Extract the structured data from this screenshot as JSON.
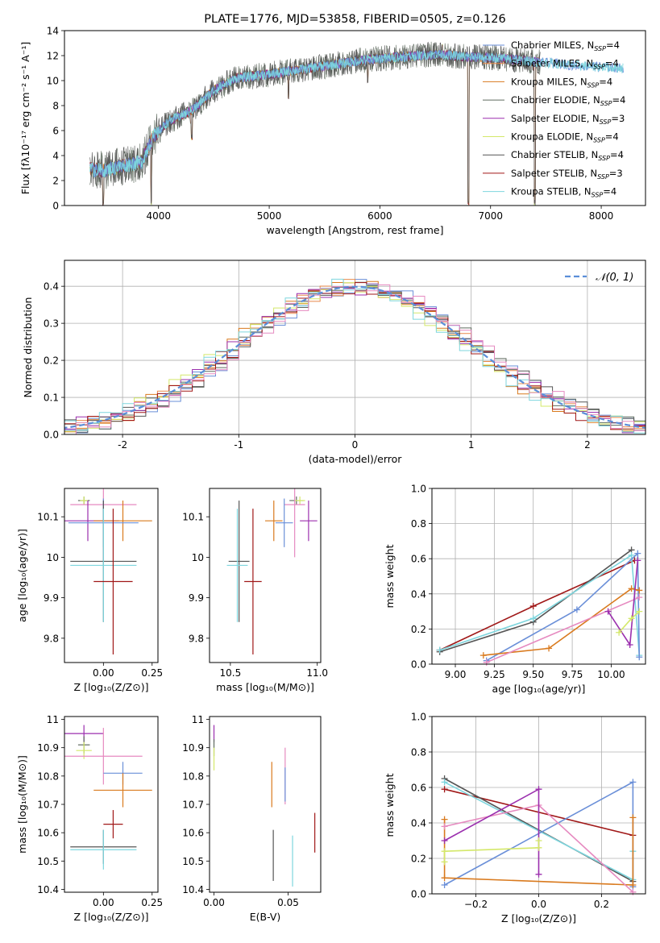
{
  "colors": {
    "chabrier_miles": "#6a8fd8",
    "salpeter_miles": "#e8894a",
    "kroupa_miles": "#d97a1e",
    "chabrier_elodie": "#5f6b5f",
    "salpeter_elodie": "#9b2fae",
    "kroupa_elodie": "#d4e86a",
    "chabrier_stelib": "#555555",
    "salpeter_stelib": "#a01818",
    "kroupa_stelib": "#7ed6de",
    "gauss": "#5b8ed8",
    "pink": "#e68ac0",
    "grid": "#b0b0b0"
  },
  "chart_data": [
    {
      "id": "spectrum",
      "type": "line",
      "title": "PLATE=1776, MJD=53858, FIBERID=0505, z=0.126",
      "xlabel": "wavelength [Angstrom, rest frame]",
      "ylabel": "Flux [fλ10⁻¹⁷ erg cm⁻² s⁻¹ A⁻¹]",
      "xlim": [
        3150,
        8400
      ],
      "ylim": [
        0,
        14
      ],
      "xticks": [
        4000,
        5000,
        6000,
        7000,
        8000
      ],
      "yticks": [
        0,
        2,
        4,
        6,
        8,
        10,
        12,
        14
      ],
      "grid": false,
      "legend_position": "right",
      "legend": [
        {
          "label": "Chabrier MILES, N",
          "sub": "SSP",
          "tail": "=4",
          "color": "chabrier_miles"
        },
        {
          "label": "Salpeter MILES, N",
          "sub": "SSP",
          "tail": "=4",
          "color": "salpeter_miles"
        },
        {
          "label": "Kroupa MILES, N",
          "sub": "SSP",
          "tail": "=4",
          "color": "kroupa_miles"
        },
        {
          "label": "Chabrier ELODIE, N",
          "sub": "SSP",
          "tail": "=4",
          "color": "chabrier_elodie"
        },
        {
          "label": "Salpeter ELODIE, N",
          "sub": "SSP",
          "tail": "=3",
          "color": "salpeter_elodie"
        },
        {
          "label": "Kroupa ELODIE, N",
          "sub": "SSP",
          "tail": "=4",
          "color": "kroupa_elodie"
        },
        {
          "label": "Chabrier STELIB, N",
          "sub": "SSP",
          "tail": "=4",
          "color": "chabrier_stelib"
        },
        {
          "label": "Salpeter STELIB, N",
          "sub": "SSP",
          "tail": "=3",
          "color": "salpeter_stelib"
        },
        {
          "label": "Kroupa STELIB, N",
          "sub": "SSP",
          "tail": "=4",
          "color": "kroupa_stelib"
        }
      ],
      "continuum": [
        [
          3380,
          2.9
        ],
        [
          3500,
          2.8
        ],
        [
          3700,
          3.2
        ],
        [
          3850,
          3.5
        ],
        [
          3950,
          5.5
        ],
        [
          4100,
          6.8
        ],
        [
          4300,
          7.6
        ],
        [
          4500,
          9.2
        ],
        [
          4700,
          10.2
        ],
        [
          5000,
          10.5
        ],
        [
          5300,
          10.9
        ],
        [
          5600,
          11.3
        ],
        [
          5900,
          11.7
        ],
        [
          6200,
          11.9
        ],
        [
          6500,
          12.1
        ],
        [
          6800,
          11.9
        ],
        [
          7100,
          11.8
        ],
        [
          7400,
          11.5
        ],
        [
          7800,
          11.2
        ],
        [
          8200,
          11.0
        ]
      ],
      "dips": [
        [
          3500,
          0
        ],
        [
          3933,
          0
        ],
        [
          4300,
          5.2
        ],
        [
          5175,
          8.5
        ],
        [
          5890,
          9.8
        ],
        [
          6800,
          0
        ],
        [
          7400,
          0
        ],
        [
          6563,
          12.5
        ]
      ]
    },
    {
      "id": "residuals",
      "type": "histogram",
      "xlabel": "(data-model)/error",
      "ylabel": "Normed distribution",
      "xlim": [
        -2.5,
        2.5
      ],
      "ylim": [
        0,
        0.47
      ],
      "xticks": [
        -2,
        -1,
        0,
        1,
        2
      ],
      "yticks": [
        0.0,
        0.1,
        0.2,
        0.3,
        0.4
      ],
      "grid": true,
      "legend_position": "top-right",
      "legend": [
        {
          "label": "𝒩(0, 1)",
          "color": "gauss",
          "dash": true
        }
      ],
      "bin_width": 0.1
    },
    {
      "id": "age_vs_Z",
      "type": "errorbar",
      "xlabel": "Z [log₁₀(Z/Z⊙)]",
      "ylabel": "age  [log₁₀(age/yr)]",
      "xlim": [
        -0.2,
        0.28
      ],
      "ylim": [
        9.74,
        10.17
      ],
      "xticks": [
        0.0,
        0.25
      ],
      "xticklabels": [
        "0.00",
        "0.25"
      ],
      "yticks": [
        9.8,
        9.9,
        10.0,
        10.1
      ],
      "grid": false,
      "points": [
        {
          "x": -0.1,
          "y": 10.14,
          "xerr": 0.03,
          "yerr": 0.01,
          "color": "chabrier_elodie"
        },
        {
          "x": -0.1,
          "y": 10.14,
          "xerr": 0.02,
          "yerr": 0.01,
          "color": "kroupa_elodie"
        },
        {
          "x": 0.0,
          "y": 10.13,
          "xerr": 0.17,
          "yerr": 0.14,
          "color": "pink"
        },
        {
          "x": -0.08,
          "y": 10.09,
          "xerr": 0.16,
          "yerr": 0.05,
          "color": "salpeter_elodie"
        },
        {
          "x": 0.1,
          "y": 10.09,
          "xerr": 0.15,
          "yerr": 0.05,
          "color": "kroupa_miles"
        },
        {
          "x": 0.0,
          "y": 10.085,
          "xerr": 0.18,
          "yerr": 0.06,
          "color": "chabrier_miles"
        },
        {
          "x": 0.0,
          "y": 9.99,
          "xerr": 0.17,
          "yerr": 0.15,
          "color": "chabrier_stelib"
        },
        {
          "x": 0.0,
          "y": 9.98,
          "xerr": 0.17,
          "yerr": 0.14,
          "color": "kroupa_stelib"
        },
        {
          "x": 0.05,
          "y": 9.94,
          "xerr": 0.1,
          "yerr": 0.18,
          "color": "salpeter_stelib"
        }
      ]
    },
    {
      "id": "age_vs_mass",
      "type": "errorbar",
      "xlabel": "mass [log₁₀(M/M⊙)]",
      "xlim": [
        10.38,
        11.02
      ],
      "ylim": [
        9.74,
        10.17
      ],
      "xticks": [
        10.5,
        11.0
      ],
      "xticklabels": [
        "10.5",
        "11.0"
      ],
      "yticks": [
        9.8,
        9.9,
        10.0,
        10.1
      ],
      "grid": false,
      "points": [
        {
          "x": 10.88,
          "y": 10.14,
          "xerr": 0.04,
          "yerr": 0.01,
          "color": "chabrier_elodie"
        },
        {
          "x": 10.9,
          "y": 10.14,
          "xerr": 0.03,
          "yerr": 0.01,
          "color": "kroupa_elodie"
        },
        {
          "x": 10.87,
          "y": 10.13,
          "xerr": 0.06,
          "yerr": 0.13,
          "color": "pink"
        },
        {
          "x": 10.95,
          "y": 10.09,
          "xerr": 0.05,
          "yerr": 0.05,
          "color": "salpeter_elodie"
        },
        {
          "x": 10.75,
          "y": 10.09,
          "xerr": 0.05,
          "yerr": 0.05,
          "color": "kroupa_miles"
        },
        {
          "x": 10.81,
          "y": 10.085,
          "xerr": 0.05,
          "yerr": 0.06,
          "color": "chabrier_miles"
        },
        {
          "x": 10.55,
          "y": 9.99,
          "xerr": 0.06,
          "yerr": 0.15,
          "color": "chabrier_stelib"
        },
        {
          "x": 10.54,
          "y": 9.98,
          "xerr": 0.06,
          "yerr": 0.14,
          "color": "kroupa_stelib"
        },
        {
          "x": 10.63,
          "y": 9.94,
          "xerr": 0.05,
          "yerr": 0.18,
          "color": "salpeter_stelib"
        }
      ]
    },
    {
      "id": "weight_vs_age",
      "type": "line",
      "xlabel": "age  [log₁₀(age/yr)]",
      "ylabel": "mass weight",
      "xlim": [
        8.85,
        10.22
      ],
      "ylim": [
        0,
        1
      ],
      "xticks": [
        9.0,
        9.25,
        9.5,
        9.75,
        10.0
      ],
      "xticklabels": [
        "9.00",
        "9.25",
        "9.50",
        "9.75",
        "10.00"
      ],
      "yticks": [
        0.0,
        0.2,
        0.4,
        0.6,
        0.8,
        1.0
      ],
      "grid": true,
      "series": [
        {
          "color": "salpeter_stelib",
          "x": [
            8.9,
            9.5,
            10.15
          ],
          "y": [
            0.08,
            0.33,
            0.59
          ]
        },
        {
          "color": "chabrier_stelib",
          "x": [
            8.9,
            9.5,
            10.13
          ],
          "y": [
            0.07,
            0.24,
            0.65
          ]
        },
        {
          "color": "kroupa_stelib",
          "x": [
            8.9,
            9.5,
            10.13,
            10.18
          ],
          "y": [
            0.08,
            0.26,
            0.62,
            0.05
          ]
        },
        {
          "color": "chabrier_miles",
          "x": [
            9.2,
            9.78,
            10.17,
            10.18
          ],
          "y": [
            0.02,
            0.31,
            0.63,
            0.04
          ]
        },
        {
          "color": "kroupa_miles",
          "x": [
            9.18,
            9.6,
            10.13,
            10.18
          ],
          "y": [
            0.05,
            0.09,
            0.43,
            0.42
          ]
        },
        {
          "color": "pink",
          "x": [
            9.2,
            10.18
          ],
          "y": [
            0.01,
            0.38
          ]
        },
        {
          "color": "salpeter_elodie",
          "x": [
            9.98,
            10.12,
            10.17
          ],
          "y": [
            0.3,
            0.11,
            0.59
          ]
        },
        {
          "color": "kroupa_elodie",
          "x": [
            10.05,
            10.13,
            10.18
          ],
          "y": [
            0.18,
            0.26,
            0.3
          ]
        }
      ]
    },
    {
      "id": "mass_vs_Z",
      "type": "errorbar",
      "xlabel": "Z [log₁₀(Z/Z⊙)]",
      "ylabel": "mass [log₁₀(M/M⊙)]",
      "xlim": [
        -0.2,
        0.28
      ],
      "ylim": [
        10.39,
        11.01
      ],
      "xticks": [
        0.0,
        0.25
      ],
      "xticklabels": [
        "0.00",
        "0.25"
      ],
      "yticks": [
        10.4,
        10.5,
        10.6,
        10.7,
        10.8,
        10.9,
        11.0
      ],
      "grid": false,
      "points": [
        {
          "x": -0.1,
          "y": 10.95,
          "xerr": 0.1,
          "yerr": 0.03,
          "color": "salpeter_elodie"
        },
        {
          "x": -0.1,
          "y": 10.91,
          "xerr": 0.03,
          "yerr": 0.03,
          "color": "chabrier_elodie"
        },
        {
          "x": -0.1,
          "y": 10.89,
          "xerr": 0.04,
          "yerr": 0.03,
          "color": "kroupa_elodie"
        },
        {
          "x": 0.0,
          "y": 10.87,
          "xerr": 0.2,
          "yerr": 0.1,
          "color": "pink"
        },
        {
          "x": 0.1,
          "y": 10.81,
          "xerr": 0.1,
          "yerr": 0.04,
          "color": "chabrier_miles"
        },
        {
          "x": 0.1,
          "y": 10.75,
          "xerr": 0.15,
          "yerr": 0.06,
          "color": "kroupa_miles"
        },
        {
          "x": 0.05,
          "y": 10.63,
          "xerr": 0.05,
          "yerr": 0.05,
          "color": "salpeter_stelib"
        },
        {
          "x": 0.0,
          "y": 10.55,
          "xerr": 0.17,
          "yerr": 0.06,
          "color": "chabrier_stelib"
        },
        {
          "x": 0.0,
          "y": 10.54,
          "xerr": 0.17,
          "yerr": 0.07,
          "color": "kroupa_stelib"
        }
      ]
    },
    {
      "id": "mass_vs_ebv",
      "type": "errorbar",
      "xlabel": "E(B-V)",
      "xlim": [
        -0.003,
        0.072
      ],
      "ylim": [
        10.39,
        11.01
      ],
      "xticks": [
        0.0,
        0.05
      ],
      "xticklabels": [
        "0.00",
        "0.05"
      ],
      "yticks": [
        10.4,
        10.5,
        10.6,
        10.7,
        10.8,
        10.9,
        11.0
      ],
      "grid": false,
      "points": [
        {
          "x": 0.0,
          "y": 10.95,
          "xerr": 0,
          "yerr": 0.03,
          "color": "salpeter_elodie"
        },
        {
          "x": 0.0,
          "y": 10.9,
          "xerr": 0,
          "yerr": 0.03,
          "color": "chabrier_elodie"
        },
        {
          "x": 0.0,
          "y": 10.86,
          "xerr": 0,
          "yerr": 0.04,
          "color": "kroupa_elodie"
        },
        {
          "x": 0.048,
          "y": 10.8,
          "xerr": 0,
          "yerr": 0.1,
          "color": "pink"
        },
        {
          "x": 0.048,
          "y": 10.77,
          "xerr": 0,
          "yerr": 0.06,
          "color": "chabrier_miles"
        },
        {
          "x": 0.039,
          "y": 10.77,
          "xerr": 0,
          "yerr": 0.08,
          "color": "kroupa_miles"
        },
        {
          "x": 0.068,
          "y": 10.6,
          "xerr": 0,
          "yerr": 0.07,
          "color": "salpeter_stelib"
        },
        {
          "x": 0.04,
          "y": 10.52,
          "xerr": 0,
          "yerr": 0.09,
          "color": "chabrier_stelib"
        },
        {
          "x": 0.053,
          "y": 10.5,
          "xerr": 0,
          "yerr": 0.09,
          "color": "kroupa_stelib"
        }
      ]
    },
    {
      "id": "weight_vs_Z",
      "type": "line",
      "xlabel": "Z [log₁₀(Z/Z⊙)]",
      "ylabel": "mass weight",
      "xlim": [
        -0.34,
        0.34
      ],
      "ylim": [
        0,
        1
      ],
      "xticks": [
        -0.2,
        0.0,
        0.2
      ],
      "xticklabels": [
        "−0.2",
        "0.0",
        "0.2"
      ],
      "yticks": [
        0.0,
        0.2,
        0.4,
        0.6,
        0.8,
        1.0
      ],
      "grid": true,
      "series": [
        {
          "color": "salpeter_stelib",
          "x": [
            -0.3,
            0.3
          ],
          "y": [
            0.59,
            0.33
          ]
        },
        {
          "color": "chabrier_stelib",
          "x": [
            -0.3,
            0.3
          ],
          "y": [
            0.65,
            0.07
          ]
        },
        {
          "color": "kroupa_stelib",
          "x": [
            -0.3,
            0.3,
            0.3
          ],
          "y": [
            0.63,
            0.08,
            0.24
          ]
        },
        {
          "color": "chabrier_miles",
          "x": [
            -0.3,
            0.3,
            0.3
          ],
          "y": [
            0.05,
            0.63,
            0.04
          ]
        },
        {
          "color": "kroupa_miles",
          "x": [
            -0.3,
            -0.3,
            0.3,
            0.3
          ],
          "y": [
            0.42,
            0.09,
            0.05,
            0.43
          ]
        },
        {
          "color": "pink",
          "x": [
            -0.3,
            0.0,
            0.3
          ],
          "y": [
            0.38,
            0.5,
            0.01
          ]
        },
        {
          "color": "salpeter_elodie",
          "x": [
            -0.3,
            0.0,
            0.0
          ],
          "y": [
            0.3,
            0.59,
            0.11
          ]
        },
        {
          "color": "kroupa_elodie",
          "x": [
            -0.3,
            -0.3,
            0.0,
            0.0
          ],
          "y": [
            0.18,
            0.24,
            0.26,
            0.3
          ]
        }
      ]
    }
  ]
}
